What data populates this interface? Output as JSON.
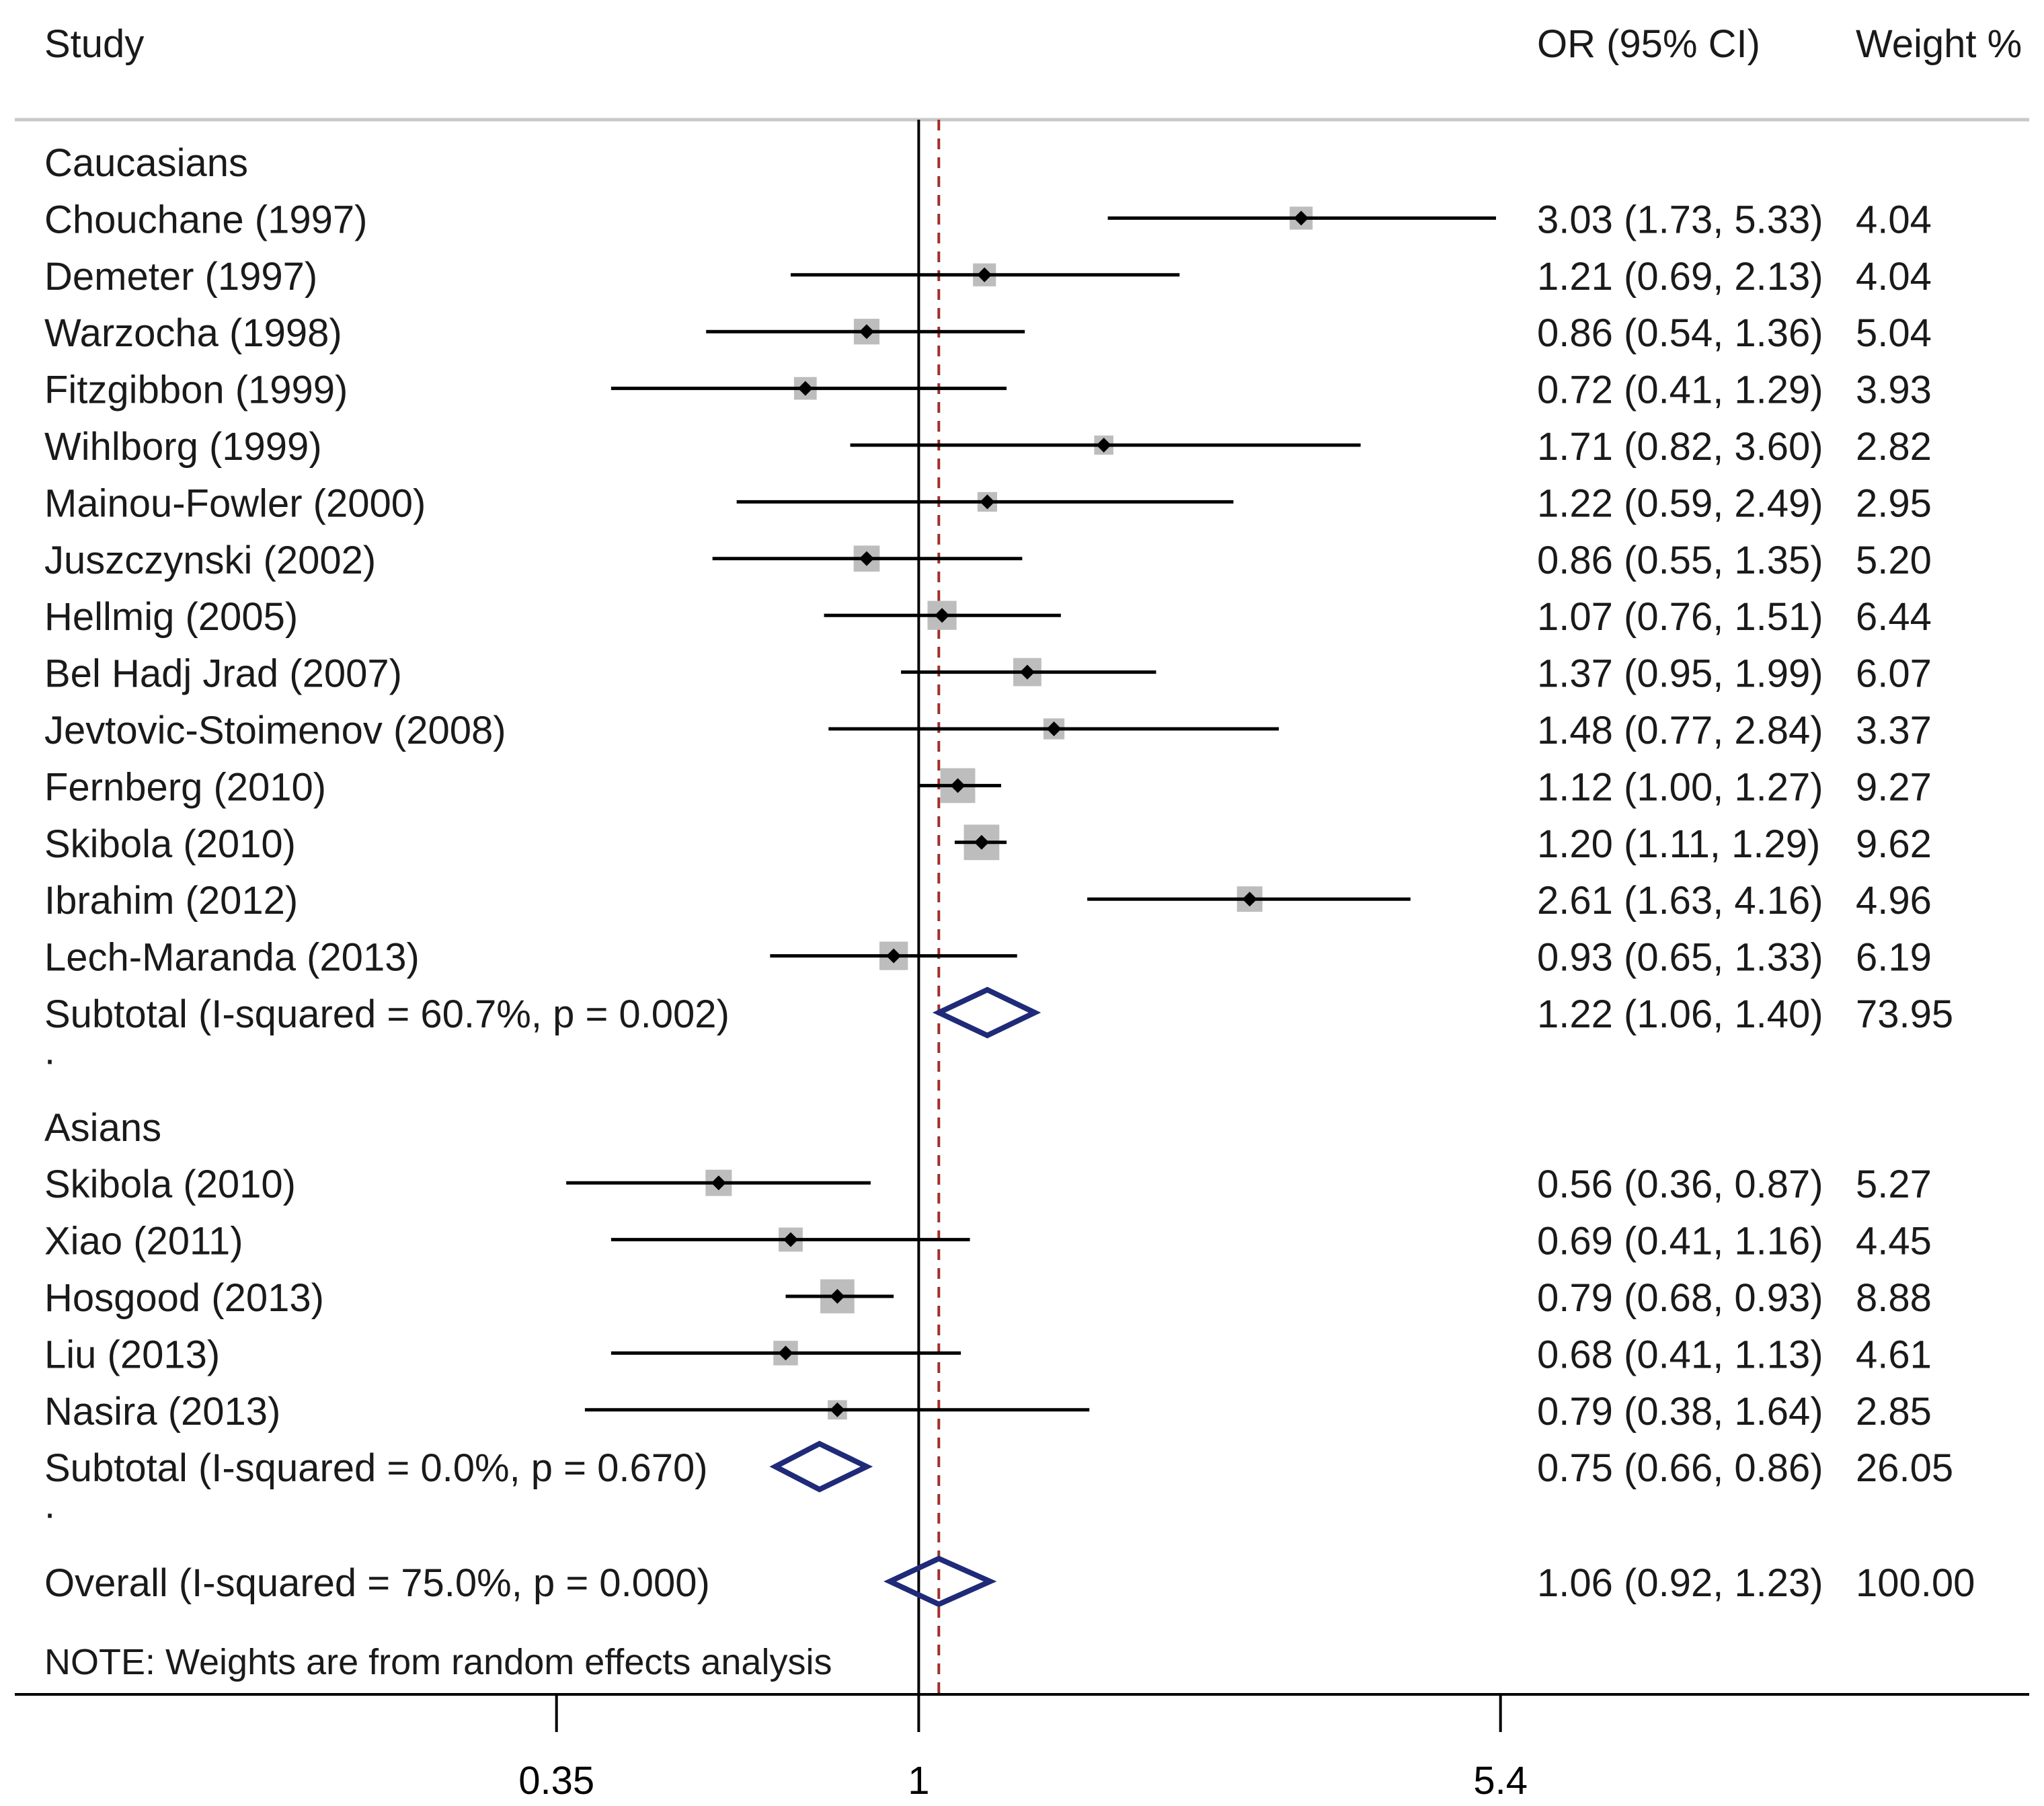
{
  "chart_data": {
    "type": "forest",
    "scale": "log",
    "xlim": [
      0.0728,
      25.0
    ],
    "x_ticks": [
      0.35,
      1,
      5.4
    ],
    "x_tick_labels": [
      "0.35",
      "1",
      "5.4"
    ],
    "reference_line": 1,
    "overall_line": 1.06,
    "header": {
      "study": "Study",
      "estimate": "OR (95% CI)",
      "weight": "Weight %"
    },
    "groups": [
      {
        "name": "Caucasians",
        "studies": [
          {
            "label": "Chouchane (1997)",
            "or": 3.03,
            "lo": 1.73,
            "hi": 5.33,
            "ci_text": "3.03 (1.73, 5.33)",
            "weight": 4.04,
            "weight_text": "4.04"
          },
          {
            "label": "Demeter (1997)",
            "or": 1.21,
            "lo": 0.69,
            "hi": 2.13,
            "ci_text": "1.21 (0.69, 2.13)",
            "weight": 4.04,
            "weight_text": "4.04"
          },
          {
            "label": "Warzocha (1998)",
            "or": 0.86,
            "lo": 0.54,
            "hi": 1.36,
            "ci_text": "0.86 (0.54, 1.36)",
            "weight": 5.04,
            "weight_text": "5.04"
          },
          {
            "label": "Fitzgibbon (1999)",
            "or": 0.72,
            "lo": 0.41,
            "hi": 1.29,
            "ci_text": "0.72 (0.41, 1.29)",
            "weight": 3.93,
            "weight_text": "3.93"
          },
          {
            "label": "Wihlborg (1999)",
            "or": 1.71,
            "lo": 0.82,
            "hi": 3.6,
            "ci_text": "1.71 (0.82, 3.60)",
            "weight": 2.82,
            "weight_text": "2.82"
          },
          {
            "label": "Mainou-Fowler (2000)",
            "or": 1.22,
            "lo": 0.59,
            "hi": 2.49,
            "ci_text": "1.22 (0.59, 2.49)",
            "weight": 2.95,
            "weight_text": "2.95"
          },
          {
            "label": "Juszczynski  (2002)",
            "or": 0.86,
            "lo": 0.55,
            "hi": 1.35,
            "ci_text": "0.86 (0.55, 1.35)",
            "weight": 5.2,
            "weight_text": "5.20"
          },
          {
            "label": "Hellmig (2005)",
            "or": 1.07,
            "lo": 0.76,
            "hi": 1.51,
            "ci_text": "1.07 (0.76, 1.51)",
            "weight": 6.44,
            "weight_text": "6.44"
          },
          {
            "label": "Bel Hadj Jrad (2007)",
            "or": 1.37,
            "lo": 0.95,
            "hi": 1.99,
            "ci_text": "1.37 (0.95, 1.99)",
            "weight": 6.07,
            "weight_text": "6.07"
          },
          {
            "label": "Jevtovic-Stoimenov (2008)",
            "or": 1.48,
            "lo": 0.77,
            "hi": 2.84,
            "ci_text": "1.48 (0.77, 2.84)",
            "weight": 3.37,
            "weight_text": "3.37"
          },
          {
            "label": "Fernberg (2010)",
            "or": 1.12,
            "lo": 1.0,
            "hi": 1.27,
            "ci_text": "1.12 (1.00, 1.27)",
            "weight": 9.27,
            "weight_text": "9.27"
          },
          {
            "label": "Skibola (2010)",
            "or": 1.2,
            "lo": 1.11,
            "hi": 1.29,
            "ci_text": "1.20 (1.11, 1.29)",
            "weight": 9.62,
            "weight_text": "9.62"
          },
          {
            "label": "Ibrahim (2012)",
            "or": 2.61,
            "lo": 1.63,
            "hi": 4.16,
            "ci_text": "2.61 (1.63, 4.16)",
            "weight": 4.96,
            "weight_text": "4.96"
          },
          {
            "label": "Lech-Maranda (2013)",
            "or": 0.93,
            "lo": 0.65,
            "hi": 1.33,
            "ci_text": "0.93 (0.65, 1.33)",
            "weight": 6.19,
            "weight_text": "6.19"
          }
        ],
        "subtotal": {
          "label": "Subtotal  (I-squared = 60.7%, p = 0.002)",
          "or": 1.22,
          "lo": 1.06,
          "hi": 1.4,
          "ci_text": "1.22 (1.06, 1.40)",
          "weight_text": "73.95"
        }
      },
      {
        "name": "Asians",
        "studies": [
          {
            "label": "Skibola (2010)",
            "or": 0.56,
            "lo": 0.36,
            "hi": 0.87,
            "ci_text": "0.56 (0.36, 0.87)",
            "weight": 5.27,
            "weight_text": "5.27"
          },
          {
            "label": "Xiao (2011)",
            "or": 0.69,
            "lo": 0.41,
            "hi": 1.16,
            "ci_text": "0.69 (0.41, 1.16)",
            "weight": 4.45,
            "weight_text": "4.45"
          },
          {
            "label": "Hosgood (2013)",
            "or": 0.79,
            "lo": 0.68,
            "hi": 0.93,
            "ci_text": "0.79 (0.68, 0.93)",
            "weight": 8.88,
            "weight_text": "8.88"
          },
          {
            "label": "Liu (2013)",
            "or": 0.68,
            "lo": 0.41,
            "hi": 1.13,
            "ci_text": "0.68 (0.41, 1.13)",
            "weight": 4.61,
            "weight_text": "4.61"
          },
          {
            "label": "Nasira (2013)",
            "or": 0.79,
            "lo": 0.38,
            "hi": 1.64,
            "ci_text": "0.79 (0.38, 1.64)",
            "weight": 2.85,
            "weight_text": "2.85"
          }
        ],
        "subtotal": {
          "label": "Subtotal  (I-squared = 0.0%, p = 0.670)",
          "or": 0.75,
          "lo": 0.66,
          "hi": 0.86,
          "ci_text": "0.75 (0.66, 0.86)",
          "weight_text": "26.05"
        }
      }
    ],
    "separator": ".",
    "overall": {
      "label": "Overall  (I-squared = 75.0%, p = 0.000)",
      "or": 1.06,
      "lo": 0.92,
      "hi": 1.23,
      "ci_text": "1.06 (0.92, 1.23)",
      "weight_text": "100.00"
    },
    "note": "NOTE: Weights are from random effects analysis",
    "colors": {
      "text": "#1a1a1a",
      "ci_line": "#000000",
      "weight_box": "#bdbdbd",
      "point": "#000000",
      "diamond": "#1f2a78",
      "overall_line": "#a0302a",
      "rule": "#c8c8c8"
    }
  }
}
